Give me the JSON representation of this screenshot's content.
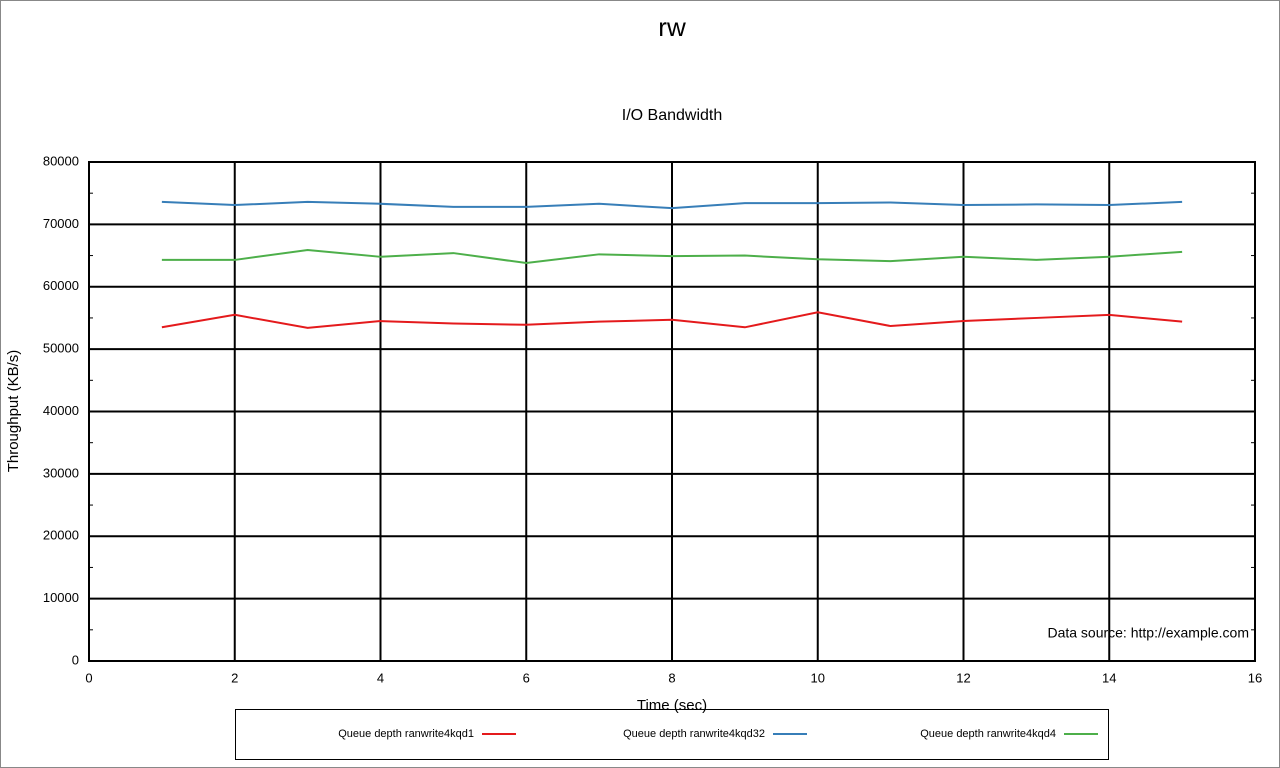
{
  "chart_data": {
    "type": "line",
    "title": "rw",
    "subtitle": "I/O Bandwidth",
    "x_label": "Time (sec)",
    "y_label": "Throughput (KB/s)",
    "annotation": "Data source: http://example.com",
    "x": [
      1,
      2,
      3,
      4,
      5,
      6,
      7,
      8,
      9,
      10,
      11,
      12,
      13,
      14,
      15
    ],
    "series": [
      {
        "name": "Queue depth ranwrite4kqd1",
        "color": "#e41a1c",
        "values": [
          53500,
          55500,
          53400,
          54500,
          54100,
          53900,
          54400,
          54700,
          53500,
          55900,
          53700,
          54500,
          55000,
          55500,
          54400
        ]
      },
      {
        "name": "Queue depth ranwrite4kqd32",
        "color": "#377eb8",
        "values": [
          73600,
          73100,
          73600,
          73300,
          72800,
          72800,
          73300,
          72600,
          73400,
          73400,
          73500,
          73100,
          73200,
          73100,
          73600
        ]
      },
      {
        "name": "Queue depth ranwrite4kqd4",
        "color": "#4daf4a",
        "values": [
          64300,
          64300,
          65900,
          64800,
          65400,
          63800,
          65200,
          64900,
          65000,
          64400,
          64100,
          64800,
          64300,
          64800,
          65600
        ]
      }
    ],
    "xlim": [
      0,
      16
    ],
    "xticks": [
      0,
      2,
      4,
      6,
      8,
      10,
      12,
      14,
      16
    ],
    "ylim": [
      0,
      80000
    ],
    "yticks": [
      0,
      10000,
      20000,
      30000,
      40000,
      50000,
      60000,
      70000,
      80000
    ],
    "grid": true,
    "legend": "bottom"
  }
}
